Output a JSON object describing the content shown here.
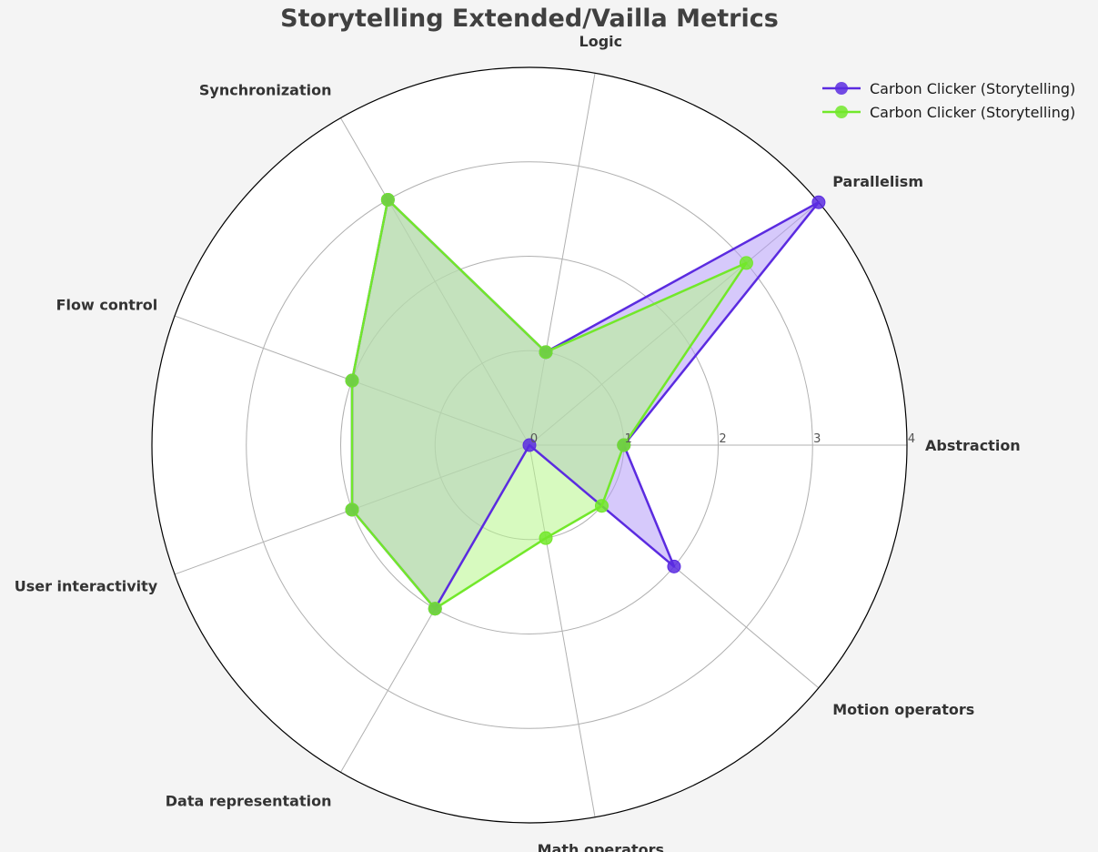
{
  "chart_data": {
    "type": "radar",
    "title": "Storytelling Extended/Vailla Metrics",
    "categories": [
      "Abstraction",
      "Parallelism",
      "Logic",
      "Synchronization",
      "Flow control",
      "User interactivity",
      "Data representation",
      "Math operators",
      "Motion operators"
    ],
    "rticks": [
      "0",
      "1",
      "2",
      "3",
      "4"
    ],
    "rlim": [
      0,
      4
    ],
    "grid": true,
    "legend_position": "top-right",
    "series": [
      {
        "name": "Carbon Clicker (Storytelling)",
        "color": "#5b2be0",
        "fill": "#b49cf7",
        "values": [
          1,
          4,
          1,
          3,
          2,
          2,
          2,
          0,
          2
        ]
      },
      {
        "name": "Carbon Clicker (Storytelling)",
        "color": "#72e82a",
        "fill": "#b6f58a",
        "values": [
          1,
          3,
          1,
          3,
          2,
          2,
          2,
          1,
          1
        ]
      }
    ]
  }
}
